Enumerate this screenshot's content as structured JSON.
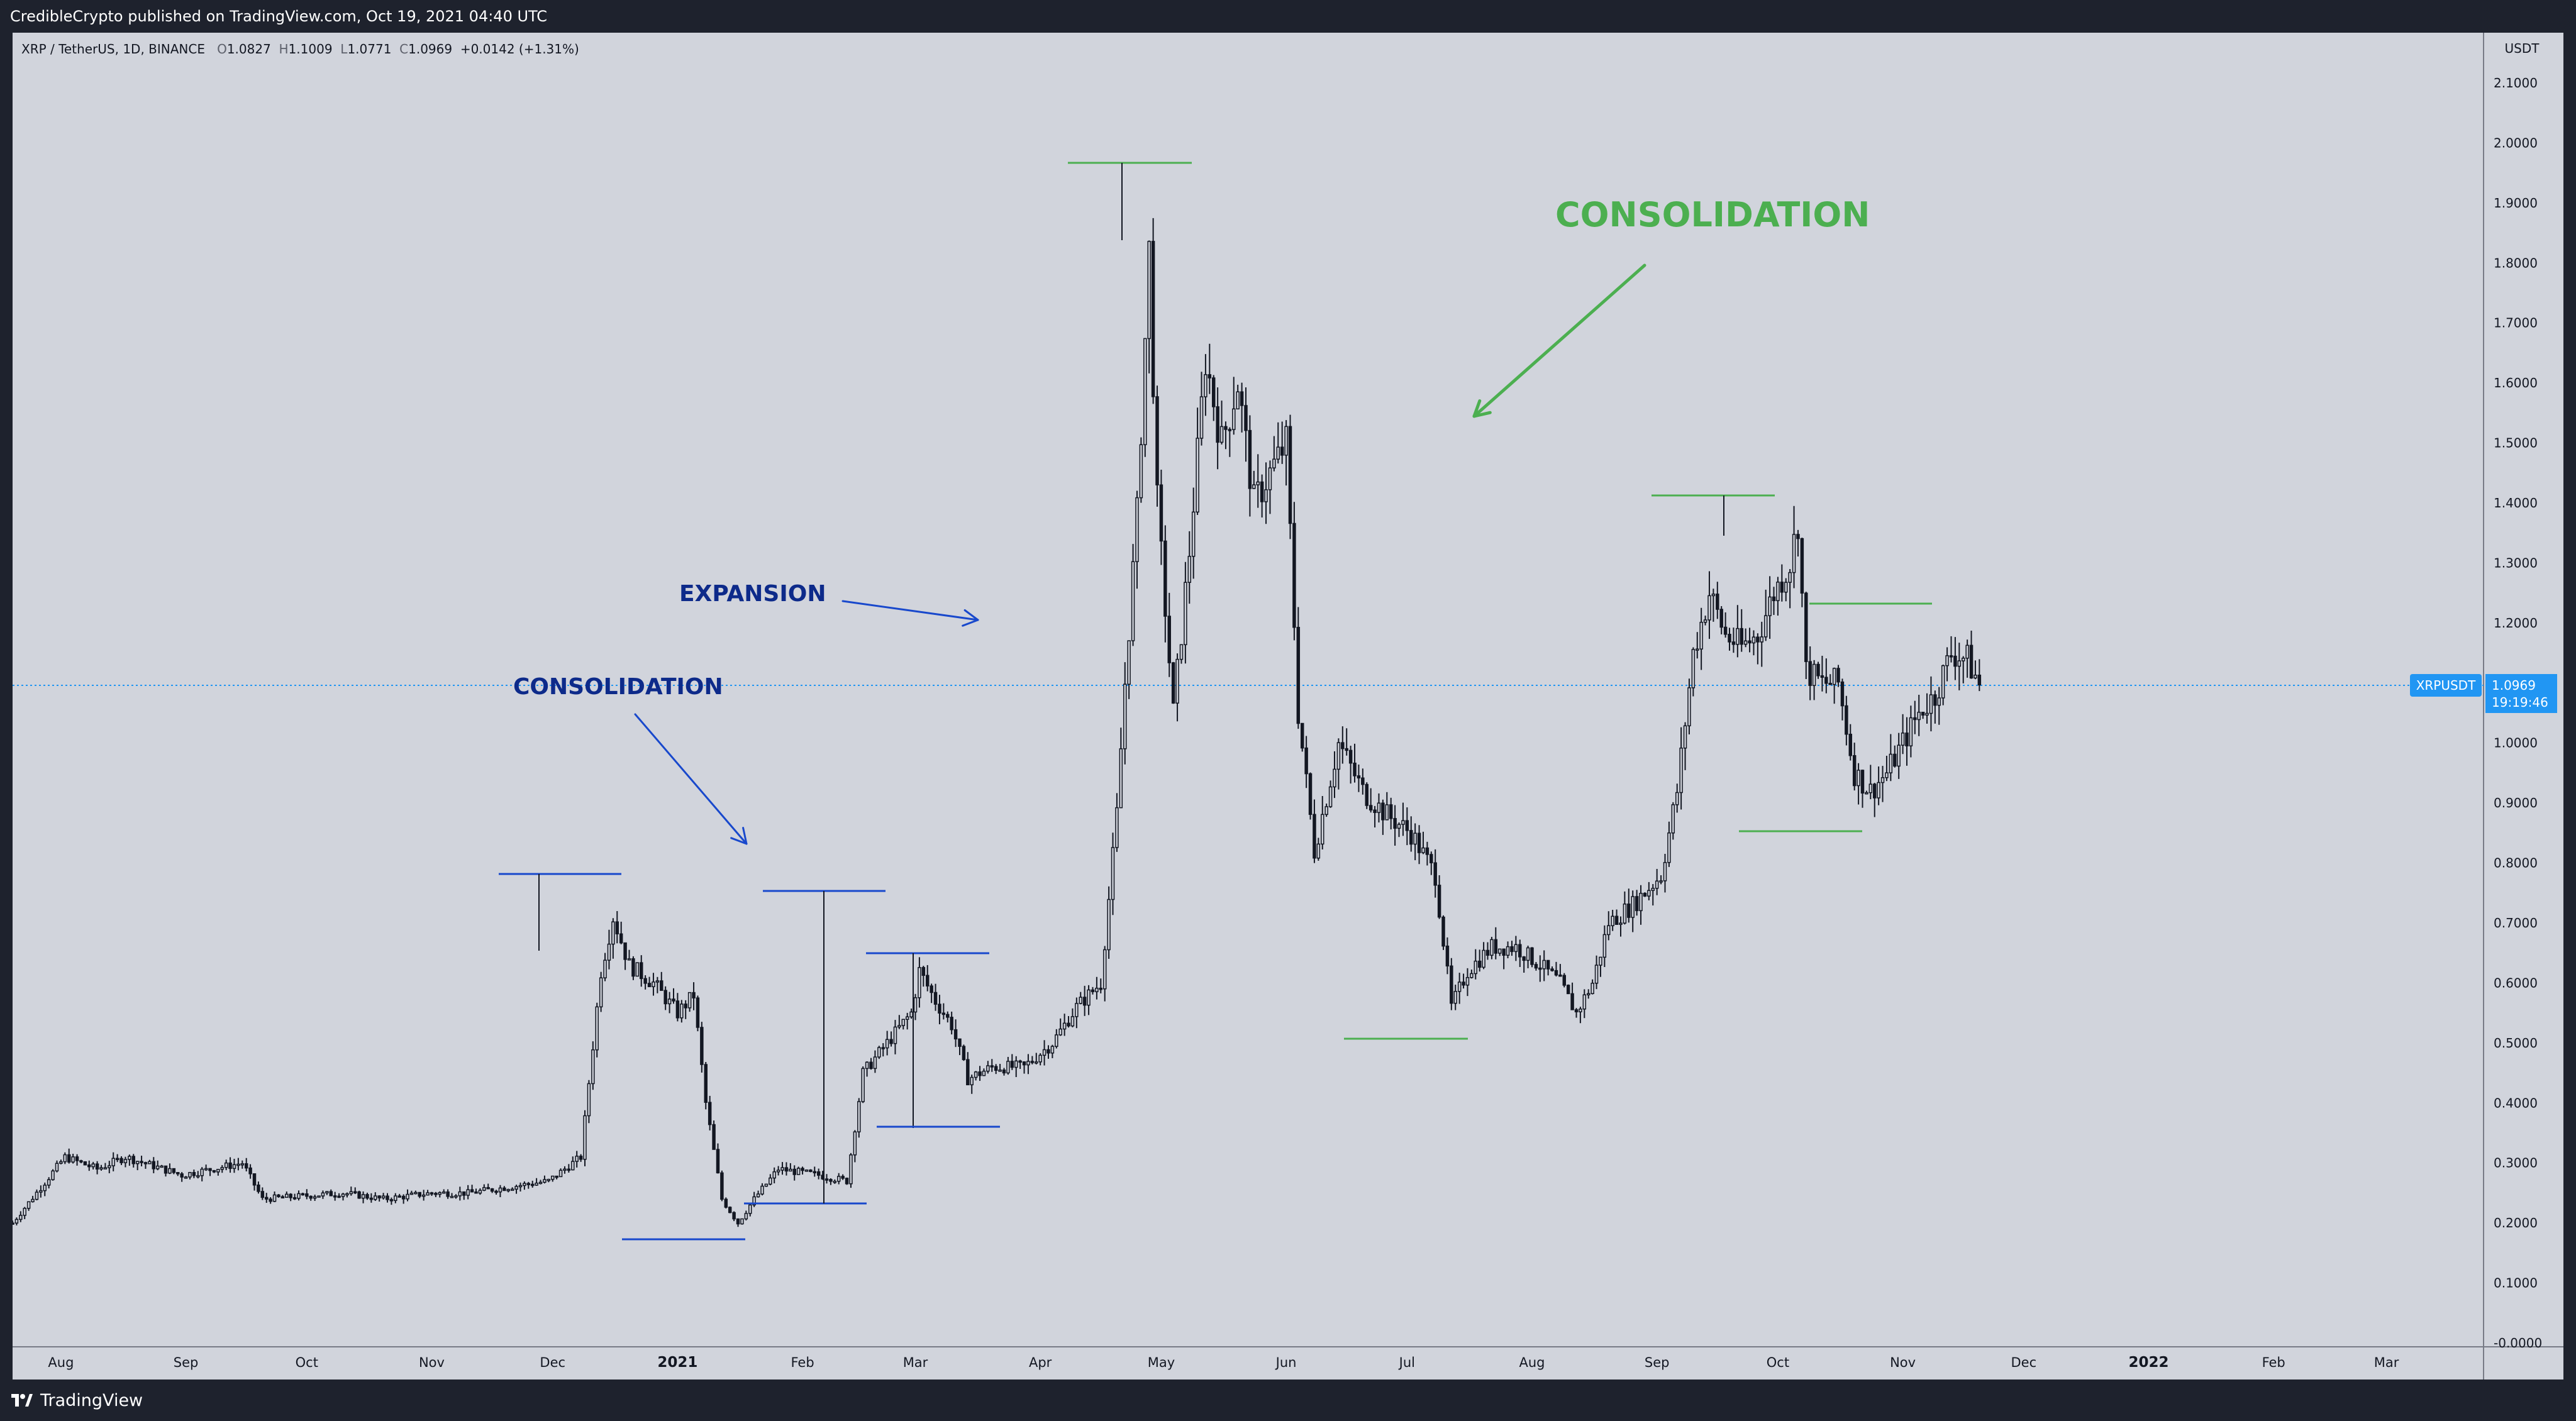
{
  "header": {
    "publish_line": "CredibleCrypto published on TradingView.com, Oct 19, 2021 04:40 UTC"
  },
  "legend": {
    "symbol": "XRP / TetherUS, 1D, BINANCE",
    "open_label": "O",
    "open": "1.0827",
    "high_label": "H",
    "high": "1.1009",
    "low_label": "L",
    "low": "1.0771",
    "close_label": "C",
    "close": "1.0969",
    "change": "+0.0142 (+1.31%)"
  },
  "price_scale": {
    "currency": "USDT",
    "ticks": [
      "2.1000",
      "2.0000",
      "1.9000",
      "1.8000",
      "1.7000",
      "1.6000",
      "1.5000",
      "1.4000",
      "1.3000",
      "1.2000",
      "1.1000",
      "1.0000",
      "0.9000",
      "0.8000",
      "0.7000",
      "0.6000",
      "0.5000",
      "0.4000",
      "0.3000",
      "0.2000",
      "0.1000",
      "-0.0000"
    ],
    "symbol_badge": "XRPUSDT",
    "last_price": "1.0969",
    "countdown": "19:19:46"
  },
  "time_scale": {
    "labels": [
      "Aug",
      "Sep",
      "Oct",
      "Nov",
      "Dec",
      "2021",
      "Feb",
      "Mar",
      "Apr",
      "May",
      "Jun",
      "Jul",
      "Aug",
      "Sep",
      "Oct",
      "Nov",
      "Dec",
      "2022",
      "Feb",
      "Mar"
    ]
  },
  "annotations": {
    "consolidation_big": "CONSOLIDATION",
    "expansion": "EXPANSION",
    "consolidation_small": "CONSOLIDATION"
  },
  "colors": {
    "background": "#d1d4dc",
    "candle": "#131722",
    "green_annotation": "#4caf50",
    "blue_annotation": "#1848cc",
    "blue_text": "#0d2a8a",
    "price_badge": "#2196f3"
  },
  "footer": {
    "brand": "TradingView"
  },
  "chart_data": {
    "type": "candlestick",
    "symbol": "XRP / TetherUS",
    "interval": "1D",
    "y_unit": "USDT",
    "ylim": [
      0.0,
      2.1
    ],
    "grid": false,
    "x_range": [
      "2020-07-20",
      "2022-03-24"
    ],
    "points": [
      {
        "date": "2020-07-20",
        "price": 0.2
      },
      {
        "date": "2020-08-02",
        "price": 0.31
      },
      {
        "date": "2020-08-10",
        "price": 0.29
      },
      {
        "date": "2020-08-17",
        "price": 0.31
      },
      {
        "date": "2020-08-31",
        "price": 0.28
      },
      {
        "date": "2020-09-15",
        "price": 0.3
      },
      {
        "date": "2020-09-20",
        "price": 0.24
      },
      {
        "date": "2020-10-10",
        "price": 0.25
      },
      {
        "date": "2020-10-20",
        "price": 0.24
      },
      {
        "date": "2020-11-01",
        "price": 0.25
      },
      {
        "date": "2020-11-10",
        "price": 0.25
      },
      {
        "date": "2020-11-20",
        "price": 0.26
      },
      {
        "date": "2020-11-30",
        "price": 0.27
      },
      {
        "date": "2020-12-08",
        "price": 0.31
      },
      {
        "date": "2020-12-13",
        "price": 0.62
      },
      {
        "date": "2020-12-16",
        "price": 0.71
      },
      {
        "date": "2020-12-20",
        "price": 0.63
      },
      {
        "date": "2020-12-26",
        "price": 0.6
      },
      {
        "date": "2021-01-01",
        "price": 0.55
      },
      {
        "date": "2021-01-05",
        "price": 0.58
      },
      {
        "date": "2021-01-08",
        "price": 0.4
      },
      {
        "date": "2021-01-12",
        "price": 0.24
      },
      {
        "date": "2021-01-16",
        "price": 0.2
      },
      {
        "date": "2021-01-20",
        "price": 0.24
      },
      {
        "date": "2021-01-26",
        "price": 0.29
      },
      {
        "date": "2021-02-05",
        "price": 0.28
      },
      {
        "date": "2021-02-12",
        "price": 0.27
      },
      {
        "date": "2021-02-16",
        "price": 0.45
      },
      {
        "date": "2021-02-22",
        "price": 0.5
      },
      {
        "date": "2021-02-28",
        "price": 0.55
      },
      {
        "date": "2021-03-02",
        "price": 0.62
      },
      {
        "date": "2021-03-06",
        "price": 0.57
      },
      {
        "date": "2021-03-10",
        "price": 0.53
      },
      {
        "date": "2021-03-14",
        "price": 0.44
      },
      {
        "date": "2021-03-20",
        "price": 0.46
      },
      {
        "date": "2021-03-28",
        "price": 0.46
      },
      {
        "date": "2021-04-04",
        "price": 0.5
      },
      {
        "date": "2021-04-10",
        "price": 0.56
      },
      {
        "date": "2021-04-16",
        "price": 0.6
      },
      {
        "date": "2021-04-20",
        "price": 0.88
      },
      {
        "date": "2021-04-22",
        "price": 1.1
      },
      {
        "date": "2021-04-25",
        "price": 1.38
      },
      {
        "date": "2021-04-28",
        "price": 1.82
      },
      {
        "date": "2021-04-30",
        "price": 1.4
      },
      {
        "date": "2021-05-04",
        "price": 1.05
      },
      {
        "date": "2021-05-08",
        "price": 1.32
      },
      {
        "date": "2021-05-12",
        "price": 1.64
      },
      {
        "date": "2021-05-16",
        "price": 1.5
      },
      {
        "date": "2021-05-20",
        "price": 1.6
      },
      {
        "date": "2021-05-24",
        "price": 1.4
      },
      {
        "date": "2021-05-28",
        "price": 1.45
      },
      {
        "date": "2021-06-01",
        "price": 1.5
      },
      {
        "date": "2021-06-04",
        "price": 1.05
      },
      {
        "date": "2021-06-08",
        "price": 0.82
      },
      {
        "date": "2021-06-14",
        "price": 1.0
      },
      {
        "date": "2021-06-20",
        "price": 0.92
      },
      {
        "date": "2021-06-26",
        "price": 0.88
      },
      {
        "date": "2021-07-02",
        "price": 0.85
      },
      {
        "date": "2021-07-08",
        "price": 0.78
      },
      {
        "date": "2021-07-12",
        "price": 0.56
      },
      {
        "date": "2021-07-16",
        "price": 0.62
      },
      {
        "date": "2021-07-22",
        "price": 0.66
      },
      {
        "date": "2021-07-28",
        "price": 0.66
      },
      {
        "date": "2021-08-03",
        "price": 0.63
      },
      {
        "date": "2021-08-08",
        "price": 0.6
      },
      {
        "date": "2021-08-12",
        "price": 0.55
      },
      {
        "date": "2021-08-16",
        "price": 0.6
      },
      {
        "date": "2021-08-20",
        "price": 0.7
      },
      {
        "date": "2021-08-26",
        "price": 0.73
      },
      {
        "date": "2021-09-02",
        "price": 0.78
      },
      {
        "date": "2021-09-06",
        "price": 0.92
      },
      {
        "date": "2021-09-10",
        "price": 1.15
      },
      {
        "date": "2021-09-14",
        "price": 1.25
      },
      {
        "date": "2021-09-18",
        "price": 1.18
      },
      {
        "date": "2021-09-22",
        "price": 1.16
      },
      {
        "date": "2021-09-26",
        "price": 1.18
      },
      {
        "date": "2021-09-30",
        "price": 1.25
      },
      {
        "date": "2021-10-04",
        "price": 1.3
      },
      {
        "date": "2021-10-06",
        "price": 1.37
      },
      {
        "date": "2021-10-08",
        "price": 1.12
      },
      {
        "date": "2021-10-12",
        "price": 1.1
      },
      {
        "date": "2021-10-16",
        "price": 1.1
      },
      {
        "date": "2021-10-20",
        "price": 0.95
      },
      {
        "date": "2021-10-24",
        "price": 0.92
      },
      {
        "date": "2021-10-28",
        "price": 0.95
      },
      {
        "date": "2021-11-01",
        "price": 1.0
      },
      {
        "date": "2021-11-05",
        "price": 1.05
      },
      {
        "date": "2021-11-09",
        "price": 1.08
      },
      {
        "date": "2021-11-13",
        "price": 1.15
      },
      {
        "date": "2021-11-17",
        "price": 1.14
      },
      {
        "date": "2021-11-20",
        "price": 1.0969
      }
    ]
  }
}
